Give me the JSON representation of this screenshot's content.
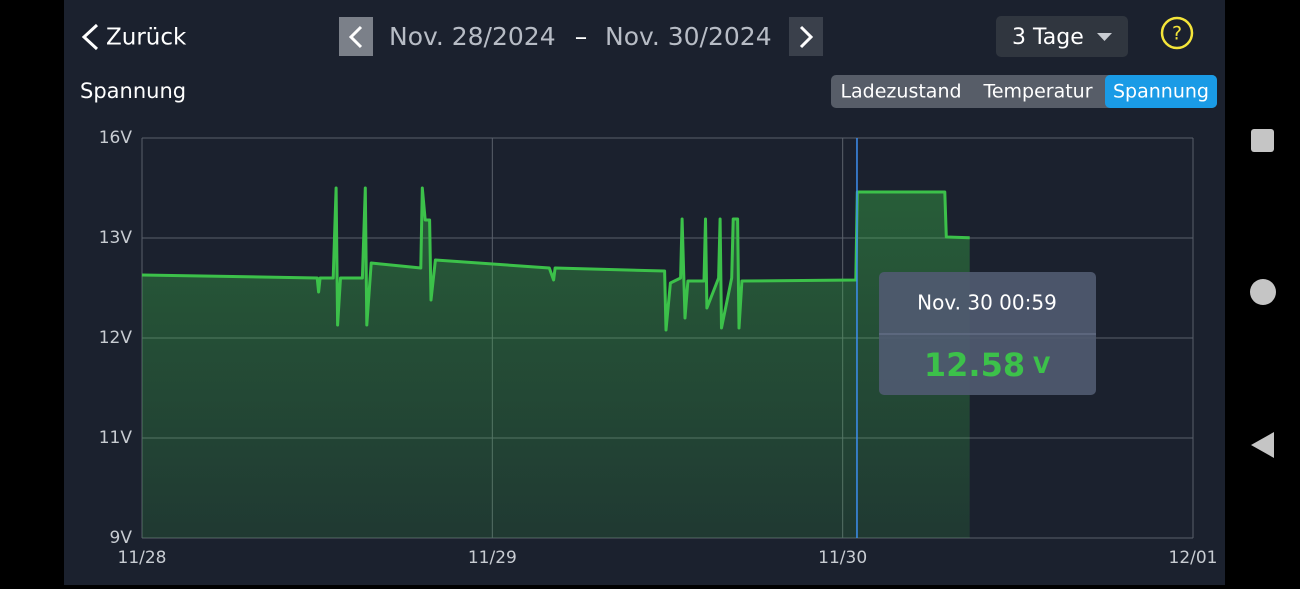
{
  "header": {
    "back": "Zurück",
    "start_date": "Nov. 28/2024",
    "separator": "–",
    "end_date": "Nov. 30/2024",
    "range": "3 Tage",
    "help": "?"
  },
  "tabs": [
    "Ladezustand",
    "Temperatur",
    "Spannung"
  ],
  "active_tab": "Spannung",
  "chart_data": {
    "type": "area",
    "title": "Spannung",
    "color": "#3cc14a",
    "x": [
      0,
      12.0,
      12.1,
      12.2,
      13.1,
      13.3,
      13.4,
      13.6,
      15.1,
      15.3,
      15.4,
      15.7,
      19.1,
      19.2,
      19.4,
      19.7,
      19.8,
      20.1,
      27.9,
      28.2,
      28.3,
      35.8,
      35.9,
      36.2,
      36.9,
      37.0,
      37.2,
      37.4,
      38.5,
      38.6,
      38.7,
      39.5,
      39.6,
      39.7,
      40.4,
      40.5,
      40.8,
      40.9,
      41.1,
      48.9,
      49.0,
      55.0,
      55.1,
      56.7
    ],
    "values": [
      12.63,
      12.6,
      12.46,
      12.6,
      12.6,
      14.5,
      12.13,
      12.6,
      12.6,
      14.5,
      12.13,
      12.75,
      12.7,
      14.5,
      13.54,
      13.54,
      12.38,
      12.78,
      12.7,
      12.58,
      12.7,
      12.67,
      12.08,
      12.55,
      12.6,
      13.57,
      12.2,
      12.57,
      12.57,
      13.57,
      12.3,
      12.6,
      13.57,
      12.1,
      12.6,
      13.57,
      13.57,
      12.1,
      12.57,
      12.58,
      14.38,
      14.38,
      13.03,
      13.01
    ],
    "xlim": [
      0,
      72
    ],
    "xticks": [
      {
        "value": 0,
        "label": "11/28"
      },
      {
        "value": 24,
        "label": "11/29"
      },
      {
        "value": 48,
        "label": "11/30"
      },
      {
        "value": 72,
        "label": "12/01"
      }
    ],
    "ylim": [
      9,
      16
    ],
    "yticks": [
      {
        "value": 9,
        "label": "9V"
      },
      {
        "value": 11,
        "label": "11V"
      },
      {
        "value": 12,
        "label": "12V"
      },
      {
        "value": 13,
        "label": "13V"
      },
      {
        "value": 16,
        "label": "16V"
      }
    ],
    "grid": true,
    "cursor": {
      "x": 48.98,
      "time": "Nov. 30 00:59",
      "value": 12.58,
      "unit": "V"
    }
  }
}
